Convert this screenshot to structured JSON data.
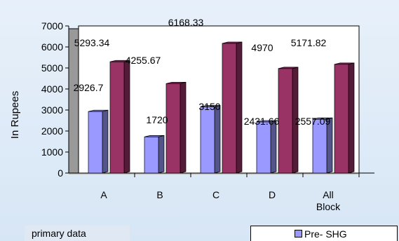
{
  "chart_data": {
    "type": "bar",
    "categories": [
      "A",
      "B",
      "C",
      "D",
      "All Block"
    ],
    "series": [
      {
        "name": "Pre- SHG",
        "values": [
          2926.7,
          1720,
          3150,
          2431.66,
          2557.09
        ],
        "color": "#9999ff"
      },
      {
        "values": [
          5293.34,
          4255.67,
          6168.33,
          4970,
          5171.82
        ],
        "color": "#993366"
      }
    ],
    "data_labels": [
      [
        "2926.7",
        "1720",
        "3150",
        "2431.66",
        "2557.09"
      ],
      [
        "5293.34",
        "4255.67",
        "6168.33",
        "4970",
        "5171.82"
      ]
    ],
    "ylabel": "In Rupees",
    "ylim": [
      0,
      7000
    ],
    "yticks": [
      0,
      1000,
      2000,
      3000,
      4000,
      5000,
      6000,
      7000
    ],
    "grid": false,
    "legend_position": "bottom-right"
  },
  "source_note": "primary data",
  "legend": {
    "pre_shg_label": "Pre- SHG"
  }
}
